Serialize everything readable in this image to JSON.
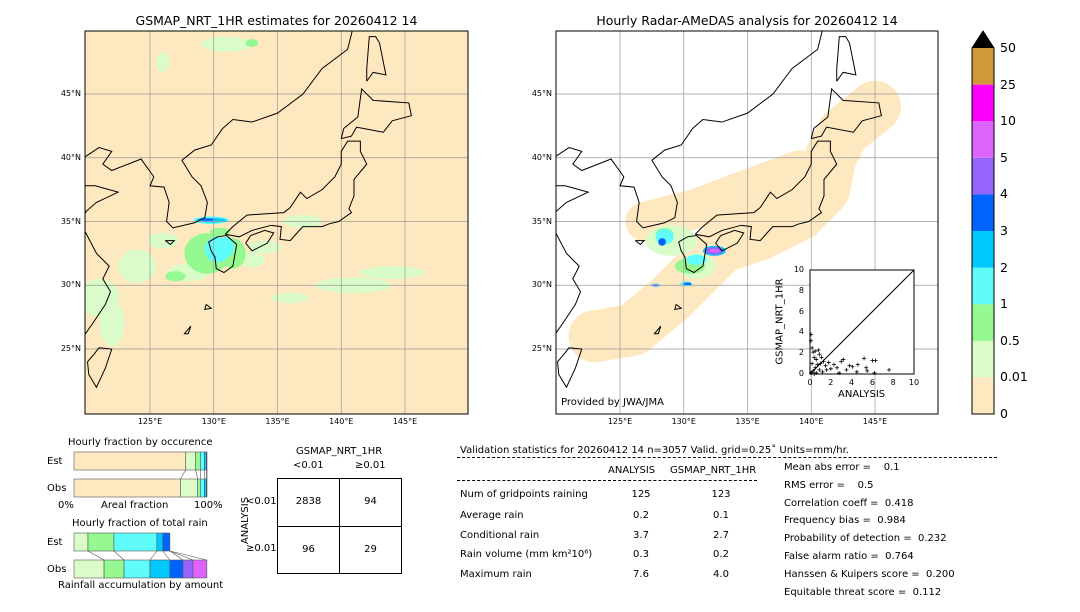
{
  "left_map": {
    "title": "GSMAP_NRT_1HR estimates for 20260412 14",
    "lon_ticks": [
      "125°E",
      "130°E",
      "135°E",
      "140°E",
      "145°E"
    ],
    "lat_ticks": [
      "45°N",
      "40°N",
      "35°N",
      "30°N",
      "25°N"
    ]
  },
  "right_map": {
    "title": "Hourly Radar-AMeDAS analysis for 20260412 14",
    "lon_ticks": [
      "125°E",
      "130°E",
      "135°E",
      "140°E",
      "145°E"
    ],
    "lat_ticks": [
      "45°N",
      "40°N",
      "35°N",
      "30°N",
      "25°N"
    ],
    "credit": "Provided by JWA/JMA"
  },
  "colorbar": {
    "levels": [
      "0",
      "0.01",
      "0.5",
      "1",
      "2",
      "3",
      "4",
      "5",
      "10",
      "25",
      "50"
    ],
    "colors": [
      "#fee8c0",
      "#dafcc8",
      "#96f890",
      "#60fcfc",
      "#00c8fc",
      "#0064fc",
      "#9664fc",
      "#dc64fc",
      "#fc00fc",
      "#d09838"
    ],
    "extend_color": "#000000"
  },
  "chart_data": [
    {
      "type": "bar",
      "title": "Hourly fraction by occurence",
      "xlabel": "Areal fraction",
      "x_ticks": [
        "0%",
        "100%"
      ],
      "categories": [
        "Est",
        "Obs"
      ],
      "bins": [
        "0-0.01",
        "0.01-0.5",
        "0.5-1",
        "1-2",
        "2-3",
        "3-4"
      ],
      "series": [
        {
          "name": "Est",
          "values": [
            0.84,
            0.075,
            0.035,
            0.03,
            0.015,
            0.005
          ]
        },
        {
          "name": "Obs",
          "values": [
            0.8,
            0.13,
            0.02,
            0.03,
            0.015,
            0.005
          ]
        }
      ]
    },
    {
      "type": "bar",
      "title": "Hourly fraction of total rain",
      "xlabel": "Rainfall accumulation by amount",
      "categories": [
        "Est",
        "Obs"
      ],
      "bins": [
        "0.01-0.5",
        "0.5-1",
        "1-2",
        "2-3",
        "3-4",
        "4-5",
        "5-10"
      ],
      "series": [
        {
          "name": "Est",
          "values": [
            0.105,
            0.195,
            0.323,
            0.045,
            0.053,
            0,
            0
          ]
        },
        {
          "name": "Obs",
          "values": [
            0.226,
            0.15,
            0.195,
            0.15,
            0.098,
            0.075,
            0.105
          ]
        }
      ]
    },
    {
      "type": "table",
      "title": "GSMAP_NRT_1HR",
      "col_labels": [
        "<0.01",
        "≥0.01"
      ],
      "row_title": "ANALYSIS",
      "row_labels": [
        "<0.01",
        "≥0.01"
      ],
      "cells": [
        [
          "2838",
          "94"
        ],
        [
          "96",
          "29"
        ]
      ]
    },
    {
      "type": "scatter",
      "xlabel": "ANALYSIS",
      "ylabel": "GSMAP_NRT_1HR",
      "xlim": [
        0,
        10
      ],
      "ylim": [
        0,
        10
      ],
      "ticks": [
        "0",
        "2",
        "4",
        "6",
        "8",
        "10"
      ],
      "points": [
        [
          0.1,
          3.8
        ],
        [
          0.1,
          3.2
        ],
        [
          0.2,
          2.5
        ],
        [
          0.3,
          2.1
        ],
        [
          0.5,
          2.2
        ],
        [
          0.8,
          2.3
        ],
        [
          0.9,
          1.9
        ],
        [
          0.4,
          1.6
        ],
        [
          0.6,
          1.4
        ],
        [
          1.1,
          1.6
        ],
        [
          1.3,
          1.2
        ],
        [
          0.2,
          1.0
        ],
        [
          0.7,
          0.9
        ],
        [
          1.5,
          0.8
        ],
        [
          1.8,
          1.1
        ],
        [
          2.0,
          0.5
        ],
        [
          2.3,
          0.9
        ],
        [
          2.6,
          0.6
        ],
        [
          3.0,
          1.2
        ],
        [
          3.2,
          1.4
        ],
        [
          3.5,
          0.4
        ],
        [
          3.8,
          0.8
        ],
        [
          4.1,
          0.7
        ],
        [
          4.5,
          0.2
        ],
        [
          4.6,
          0.9
        ],
        [
          5.2,
          1.5
        ],
        [
          5.4,
          0.6
        ],
        [
          5.5,
          0.3
        ],
        [
          6.0,
          1.3
        ],
        [
          6.3,
          1.3
        ],
        [
          6.2,
          0.1
        ],
        [
          7.6,
          0.4
        ],
        [
          0.3,
          0.3
        ],
        [
          0.5,
          0.6
        ],
        [
          0.9,
          0.4
        ],
        [
          1.2,
          0.2
        ],
        [
          1.6,
          0.4
        ],
        [
          0.1,
          0.1
        ],
        [
          0.4,
          0.0
        ],
        [
          2.8,
          0.1
        ],
        [
          1.0,
          1.0
        ],
        [
          0.6,
          0.1
        ]
      ]
    }
  ],
  "stats": {
    "header": "Validation statistics for 20260412 14  n=3057 Valid. grid=0.25˚ Units=mm/hr.",
    "col_headers": [
      "ANALYSIS",
      "GSMAP_NRT_1HR"
    ],
    "rows": [
      {
        "label": "Num of gridpoints raining",
        "a": "125",
        "g": "123"
      },
      {
        "label": "Average rain",
        "a": "0.2",
        "g": "0.1"
      },
      {
        "label": "Conditional rain",
        "a": "3.7",
        "g": "2.7"
      },
      {
        "label": "Rain volume (mm km²10⁶)",
        "a": "0.3",
        "g": "0.2"
      },
      {
        "label": "Maximum rain",
        "a": "7.6",
        "g": "4.0"
      }
    ],
    "scores": [
      "Mean abs error =    0.1",
      "RMS error =    0.5",
      "Correlation coeff =  0.418",
      "Frequency bias =  0.984",
      "Probability of detection =  0.232",
      "False alarm ratio =  0.764",
      "Hanssen & Kuipers score =  0.200",
      "Equitable threat score =  0.112"
    ]
  }
}
